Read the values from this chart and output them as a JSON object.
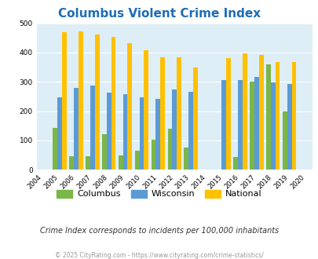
{
  "title": "Columbus Violent Crime Index",
  "years": [
    2005,
    2006,
    2007,
    2008,
    2009,
    2010,
    2011,
    2012,
    2013,
    2015,
    2016,
    2017,
    2018,
    2019
  ],
  "columbus": [
    142,
    47,
    47,
    122,
    50,
    65,
    102,
    140,
    75,
    0,
    44,
    300,
    360,
    200
  ],
  "wisconsin": [
    248,
    280,
    287,
    262,
    258,
    248,
    243,
    275,
    265,
    305,
    305,
    318,
    298,
    293
  ],
  "national": [
    469,
    472,
    462,
    453,
    432,
    407,
    385,
    385,
    348,
    380,
    398,
    393,
    368,
    368
  ],
  "columbus_color": "#7ab648",
  "wisconsin_color": "#5b9bd5",
  "national_color": "#ffc000",
  "plot_bg_color": "#ddeef6",
  "title_color": "#1f6db5",
  "xlabel_ticks": [
    2004,
    2005,
    2006,
    2007,
    2008,
    2009,
    2010,
    2011,
    2012,
    2013,
    2014,
    2015,
    2016,
    2017,
    2018,
    2019,
    2020
  ],
  "ylim": [
    0,
    500
  ],
  "yticks": [
    0,
    100,
    200,
    300,
    400,
    500
  ],
  "subtitle": "Crime Index corresponds to incidents per 100,000 inhabitants",
  "footer": "© 2025 CityRating.com - https://www.cityrating.com/crime-statistics/",
  "bar_width": 0.28,
  "legend_labels": [
    "Columbus",
    "Wisconsin",
    "National"
  ]
}
